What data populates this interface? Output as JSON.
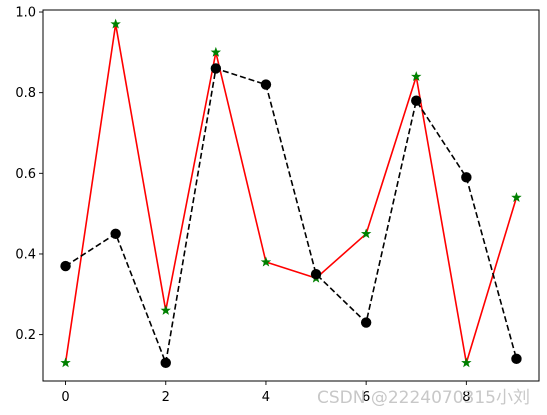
{
  "chart_data": {
    "type": "line",
    "x": [
      0,
      1,
      2,
      3,
      4,
      5,
      6,
      7,
      8,
      9
    ],
    "series": [
      {
        "values": [
          0.13,
          0.97,
          0.26,
          0.9,
          0.38,
          0.34,
          0.45,
          0.84,
          0.13,
          0.54
        ],
        "line_color": "#ff0000",
        "line_style": "solid",
        "marker": "star",
        "marker_color": "#008000"
      },
      {
        "values": [
          0.37,
          0.45,
          0.13,
          0.86,
          0.82,
          0.35,
          0.23,
          0.78,
          0.59,
          0.14
        ],
        "line_color": "#000000",
        "line_style": "dashed",
        "marker": "circle",
        "marker_color": "#000000"
      }
    ],
    "xlim": [
      -0.45,
      9.45
    ],
    "ylim": [
      0.085,
      1.005
    ],
    "xticks": [
      0,
      2,
      4,
      6,
      8
    ],
    "yticks": [
      0.2,
      0.4,
      0.6,
      0.8,
      1.0
    ],
    "xtick_labels": [
      "0",
      "2",
      "4",
      "6",
      "8"
    ],
    "ytick_labels": [
      "0.2",
      "0.4",
      "0.6",
      "0.8",
      "1.0"
    ],
    "grid": false,
    "title": "",
    "xlabel": "",
    "ylabel": ""
  },
  "watermark": {
    "text": "CSDN @2224070315小刘"
  }
}
